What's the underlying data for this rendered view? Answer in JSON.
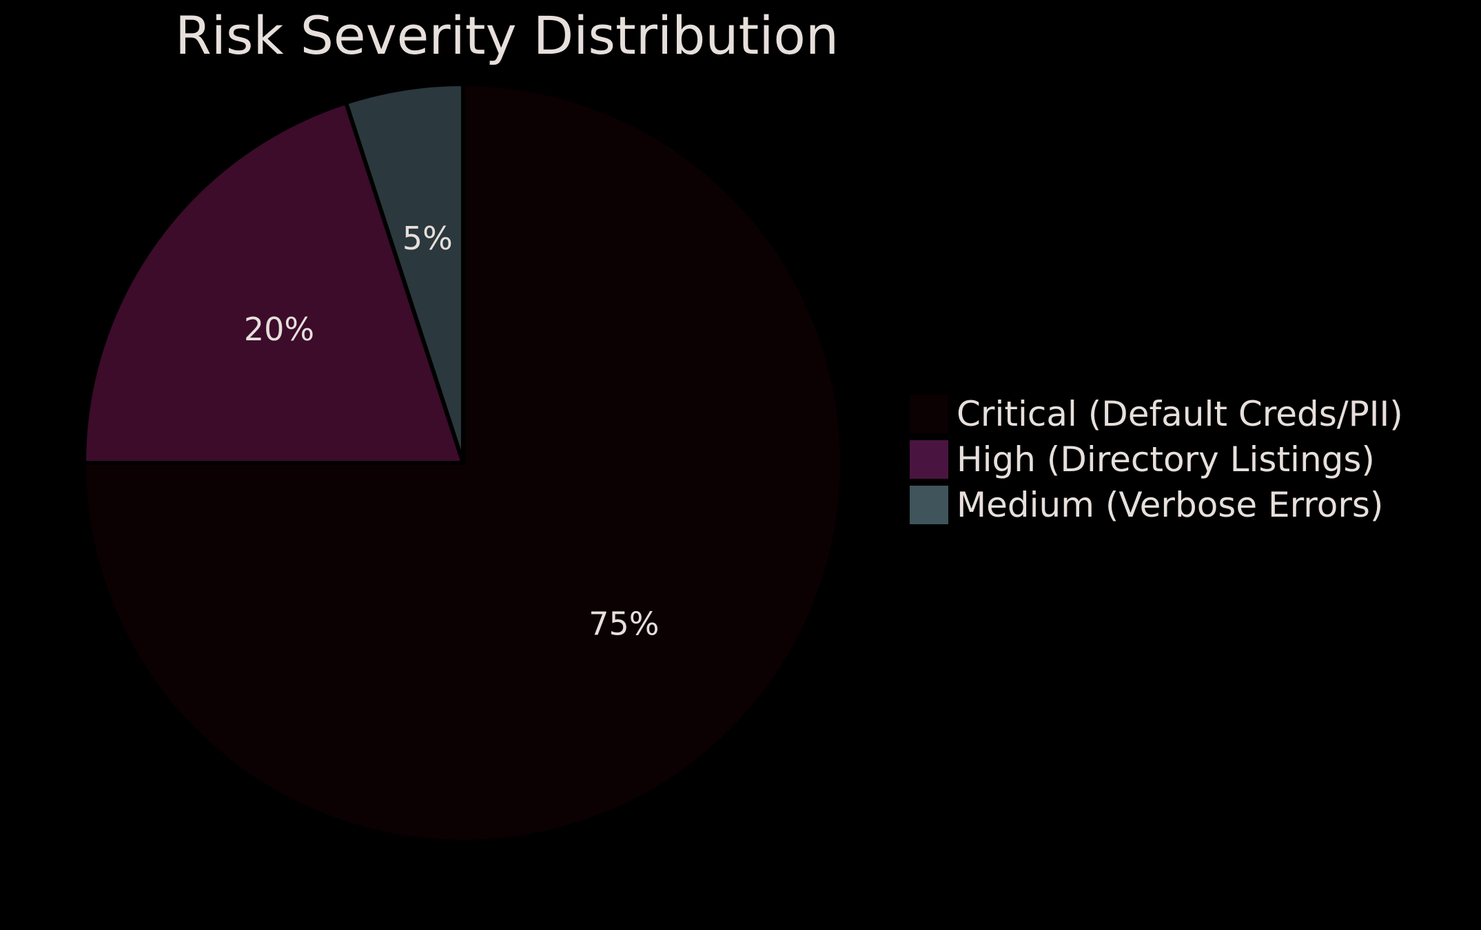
{
  "chart_data": {
    "type": "pie",
    "title": "Risk Severity Distribution",
    "categories": [
      "Critical (Default Creds/PII)",
      "High (Directory Listings)",
      "Medium (Verbose Errors)"
    ],
    "values": [
      75,
      20,
      5
    ],
    "labels": [
      "75%",
      "20%",
      "5%"
    ],
    "colors": [
      "#0b0002",
      "#3c0c2a",
      "#2b383d"
    ],
    "legend_colors": [
      "#0b0002",
      "#4a1440",
      "#40545b"
    ],
    "start_angle": "top",
    "direction": "clockwise",
    "legend_position": "right"
  }
}
